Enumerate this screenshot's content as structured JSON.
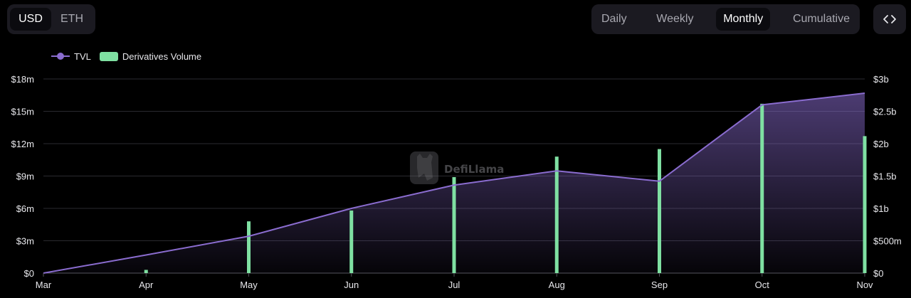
{
  "currency_toggle": {
    "options": [
      "USD",
      "ETH"
    ],
    "selected": "USD"
  },
  "period_toggle": {
    "options": [
      "Daily",
      "Weekly",
      "Monthly",
      "Cumulative"
    ],
    "selected": "Monthly"
  },
  "embed_button": {
    "icon": "code-icon"
  },
  "watermark": {
    "text": "DefiLlama",
    "icon": "llama-logo"
  },
  "colors": {
    "tvl": "#8a6ccf",
    "volume": "#7fe0a2",
    "background": "#000000",
    "grid": "#2a2a2f"
  },
  "chart_data": {
    "type": "bar+area",
    "legend": [
      {
        "name": "TVL",
        "type": "line",
        "color": "#8a6ccf"
      },
      {
        "name": "Derivatives Volume",
        "type": "bar",
        "color": "#7fe0a2"
      }
    ],
    "x_ticks": [
      "Mar",
      "Apr",
      "May",
      "Jun",
      "Jul",
      "Aug",
      "Sep",
      "Oct",
      "Nov"
    ],
    "left_axis": {
      "ticks": [
        "$0",
        "$3m",
        "$6m",
        "$9m",
        "$12m",
        "$15m",
        "$18m"
      ],
      "values": [
        0,
        3,
        6,
        9,
        12,
        15,
        18
      ],
      "unit": "m",
      "range": [
        0,
        18
      ]
    },
    "right_axis": {
      "ticks": [
        "$0",
        "$500m",
        "$1b",
        "$1.5b",
        "$2b",
        "$2.5b",
        "$3b"
      ],
      "values": [
        0,
        0.5,
        1,
        1.5,
        2,
        2.5,
        3
      ],
      "unit": "b",
      "range": [
        0,
        3
      ]
    },
    "series": [
      {
        "name": "Derivatives Volume",
        "axis": "left",
        "unit": "$m",
        "values": [
          0,
          0.3,
          4.8,
          5.8,
          8.9,
          10.8,
          11.5,
          15.7,
          12.7
        ]
      },
      {
        "name": "TVL",
        "axis": "right",
        "unit": "$b",
        "values": [
          0,
          0.28,
          0.57,
          1.0,
          1.36,
          1.58,
          1.42,
          2.6,
          2.78
        ]
      }
    ],
    "grid": true,
    "legend_position": "top-left"
  }
}
